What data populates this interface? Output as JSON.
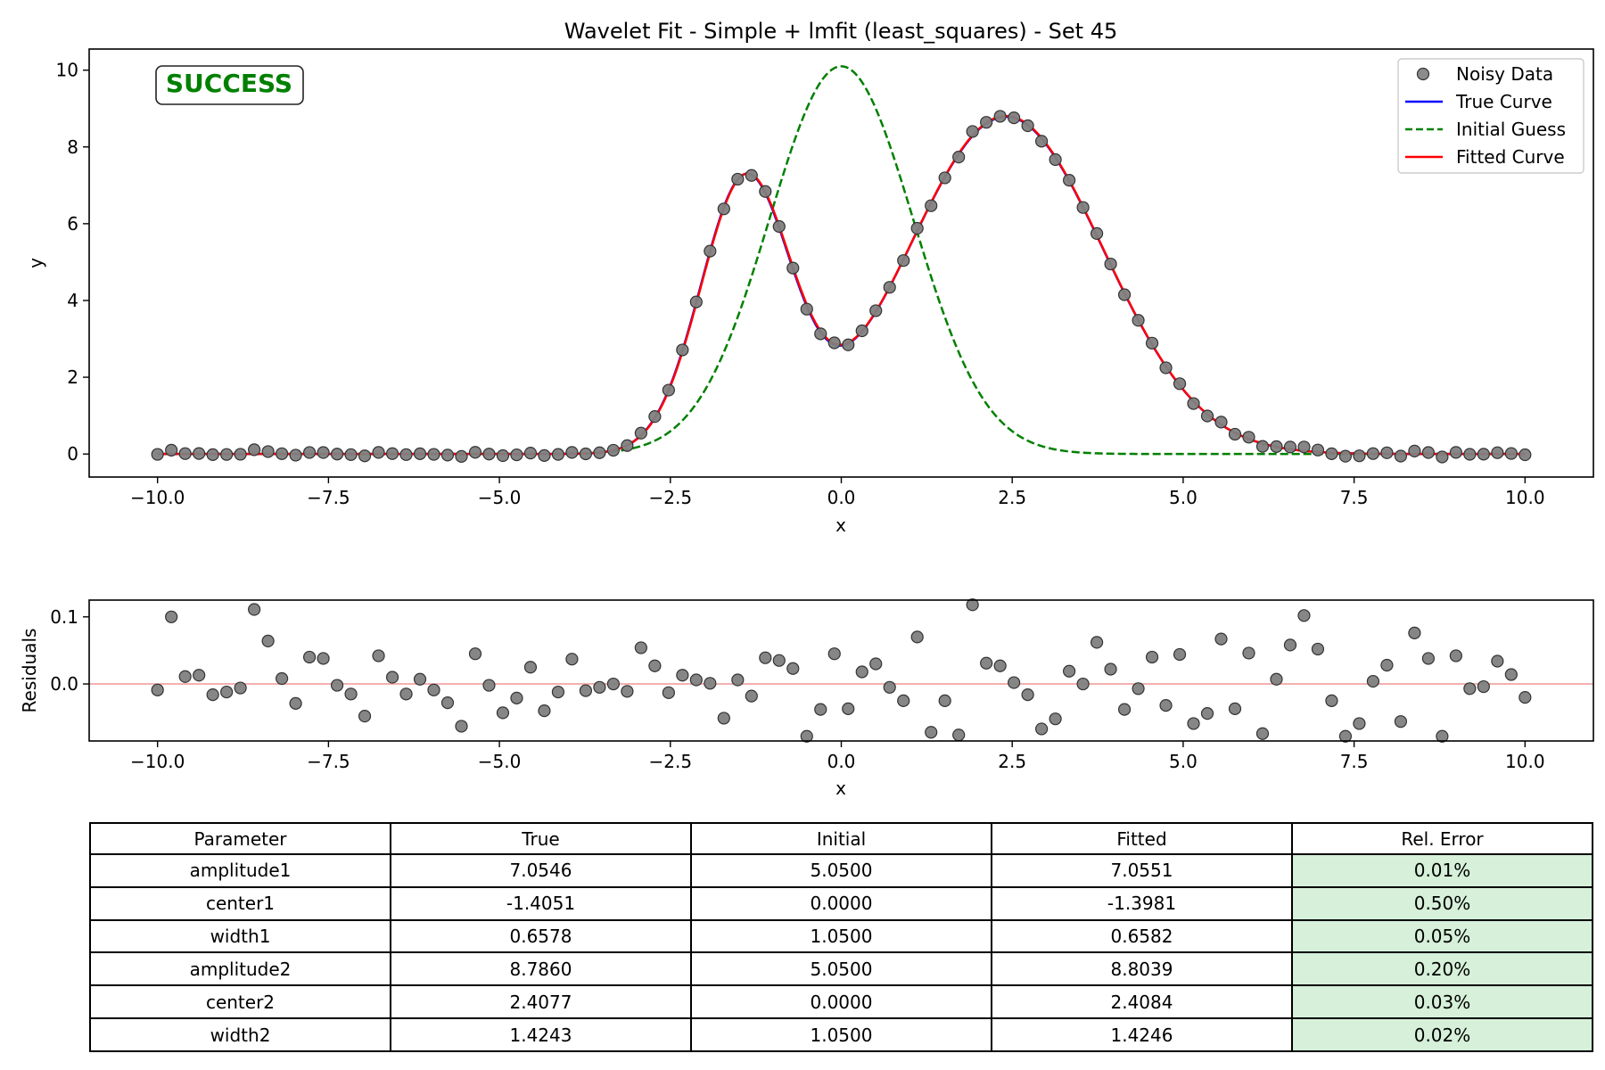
{
  "title": "Wavelet Fit - Simple + lmfit (least_squares) - Set 45",
  "status_badge": "SUCCESS",
  "colors": {
    "noisy_data": "#808080",
    "true_curve": "#0000ff",
    "initial_guess": "#008000",
    "fitted_curve": "#ff0000",
    "success": "#008000",
    "residual_zero": "#f4b0b0",
    "good_error": "#d6f0d9"
  },
  "chart_data": [
    {
      "type": "scatter",
      "xlabel": "x",
      "ylabel": "y",
      "xlim": [
        -11,
        11
      ],
      "ylim": [
        -0.6,
        10.55
      ],
      "xticks": [
        -10.0,
        -7.5,
        -5.0,
        -2.5,
        0.0,
        2.5,
        5.0,
        7.5,
        10.0
      ],
      "xtick_labels": [
        "−10.0",
        "−7.5",
        "−5.0",
        "−2.5",
        "0.0",
        "2.5",
        "5.0",
        "7.5",
        "10.0"
      ],
      "yticks": [
        0,
        2,
        4,
        6,
        8,
        10
      ],
      "ytick_labels": [
        "0",
        "2",
        "4",
        "6",
        "8",
        "10"
      ],
      "legend_position": "top-right",
      "series": [
        {
          "name": "Noisy Data",
          "kind": "points",
          "model": {
            "a1": 7.0546,
            "c1": -1.4051,
            "w1": 0.6578,
            "a2": 8.786,
            "c2": 2.4077,
            "w2": 1.4243
          },
          "x_start": -10,
          "x_end": 10,
          "n_points": 100
        },
        {
          "name": "True Curve",
          "kind": "line",
          "model": {
            "a1": 7.0546,
            "c1": -1.4051,
            "w1": 0.6578,
            "a2": 8.786,
            "c2": 2.4077,
            "w2": 1.4243
          }
        },
        {
          "name": "Initial Guess",
          "kind": "dashed-line",
          "model": {
            "a1": 5.05,
            "c1": 0.0,
            "w1": 1.05,
            "a2": 5.05,
            "c2": 0.0,
            "w2": 1.05
          }
        },
        {
          "name": "Fitted Curve",
          "kind": "line",
          "model": {
            "a1": 7.0551,
            "c1": -1.3981,
            "w1": 0.6582,
            "a2": 8.8039,
            "c2": 2.4084,
            "w2": 1.4246
          }
        }
      ]
    },
    {
      "type": "scatter",
      "xlabel": "x",
      "ylabel": "Residuals",
      "xlim": [
        -11,
        11
      ],
      "ylim": [
        -0.085,
        0.125
      ],
      "xticks": [
        -10.0,
        -7.5,
        -5.0,
        -2.5,
        0.0,
        2.5,
        5.0,
        7.5,
        10.0
      ],
      "xtick_labels": [
        "−10.0",
        "−7.5",
        "−5.0",
        "−2.5",
        "0.0",
        "2.5",
        "5.0",
        "7.5",
        "10.0"
      ],
      "yticks": [
        0.1,
        0.0
      ],
      "ytick_labels": [
        "0.1",
        "0.0"
      ],
      "series": [
        {
          "kind": "points",
          "x_start": -10,
          "x_end": 10,
          "values": [
            -0.009,
            0.1,
            0.011,
            0.013,
            -0.016,
            -0.012,
            -0.006,
            0.111,
            0.064,
            0.008,
            -0.029,
            0.04,
            0.038,
            -0.002,
            -0.015,
            -0.048,
            0.042,
            0.01,
            -0.015,
            0.007,
            -0.009,
            -0.028,
            -0.063,
            0.045,
            -0.002,
            -0.043,
            -0.021,
            0.025,
            -0.04,
            -0.012,
            0.037,
            -0.01,
            -0.005,
            0.0,
            -0.011,
            0.054,
            0.027,
            -0.013,
            0.013,
            0.006,
            0.001,
            -0.051,
            0.006,
            -0.018,
            0.039,
            0.035,
            0.023,
            -0.078,
            -0.038,
            0.045,
            -0.037,
            0.018,
            0.03,
            -0.005,
            -0.025,
            0.07,
            -0.072,
            -0.025,
            -0.076,
            0.118,
            0.031,
            0.027,
            0.002,
            -0.016,
            -0.067,
            -0.052,
            0.019,
            0.0,
            0.062,
            0.022,
            -0.038,
            -0.007,
            0.04,
            -0.032,
            0.044,
            -0.059,
            -0.044,
            0.067,
            -0.037,
            0.046,
            -0.074,
            0.007,
            0.058,
            0.102,
            0.052,
            -0.025,
            -0.078,
            -0.059,
            0.004,
            0.028,
            -0.056,
            0.076,
            0.038,
            -0.078,
            0.042,
            -0.007,
            -0.004,
            0.034,
            0.014,
            -0.02
          ]
        }
      ]
    },
    {
      "type": "table",
      "headers": [
        "Parameter",
        "True",
        "Initial",
        "Fitted",
        "Rel. Error"
      ],
      "rows": [
        [
          "amplitude1",
          "7.0546",
          "5.0500",
          "7.0551",
          "0.01%"
        ],
        [
          "center1",
          "-1.4051",
          "0.0000",
          "-1.3981",
          "0.50%"
        ],
        [
          "width1",
          "0.6578",
          "1.0500",
          "0.6582",
          "0.05%"
        ],
        [
          "amplitude2",
          "8.7860",
          "5.0500",
          "8.8039",
          "0.20%"
        ],
        [
          "center2",
          "2.4077",
          "0.0000",
          "2.4084",
          "0.03%"
        ],
        [
          "width2",
          "1.4243",
          "1.0500",
          "1.4246",
          "0.02%"
        ]
      ]
    }
  ]
}
